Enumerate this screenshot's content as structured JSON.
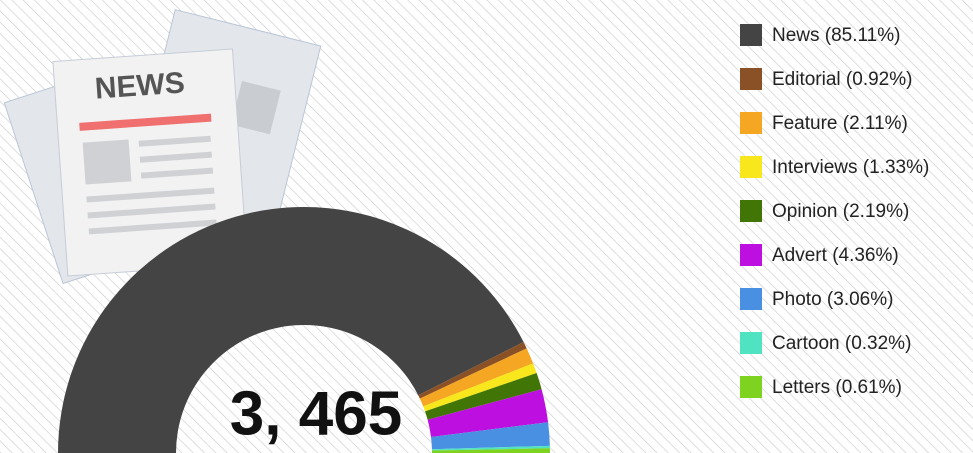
{
  "chart_data": {
    "type": "donut",
    "center_label": "3, 465",
    "illustration_label": "NEWS",
    "categories": [
      "News (85.11%)",
      "Editorial (0.92%)",
      "Feature (2.11%)",
      "Interviews (1.33%)",
      "Opinion (2.19%)",
      "Advert (4.36%)",
      "Photo (3.06%)",
      "Cartoon (0.32%)",
      "Letters (0.61%)"
    ],
    "values": [
      85.11,
      0.92,
      2.11,
      1.33,
      2.19,
      4.36,
      3.06,
      0.32,
      0.61
    ],
    "colors": [
      "#444444",
      "#8b5126",
      "#f5a623",
      "#f8e71c",
      "#417505",
      "#bd10e0",
      "#4a90e2",
      "#50e3c2",
      "#7ed321"
    ],
    "legend": "top-right"
  }
}
